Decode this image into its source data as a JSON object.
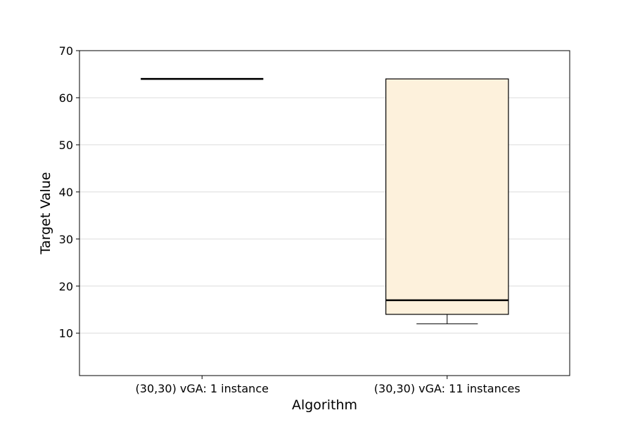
{
  "chart_data": {
    "type": "box",
    "xlabel": "Algorithm",
    "ylabel": "Target Value",
    "ylim": [
      1,
      70
    ],
    "yticks": [
      10,
      20,
      30,
      40,
      50,
      60,
      70
    ],
    "grid": "horizontal",
    "categories": [
      "(30,30) vGA: 1 instance",
      "(30,30) vGA: 11 instances"
    ],
    "boxes": [
      {
        "category": "(30,30) vGA: 1 instance",
        "whisker_low": 64,
        "q1": 64,
        "median": 64,
        "q3": 64,
        "whisker_high": 64,
        "fill": "#fdf1dc"
      },
      {
        "category": "(30,30) vGA: 11 instances",
        "whisker_low": 12,
        "q1": 14,
        "median": 17,
        "q3": 64,
        "whisker_high": 64,
        "fill": "#fdf1dc"
      }
    ]
  }
}
